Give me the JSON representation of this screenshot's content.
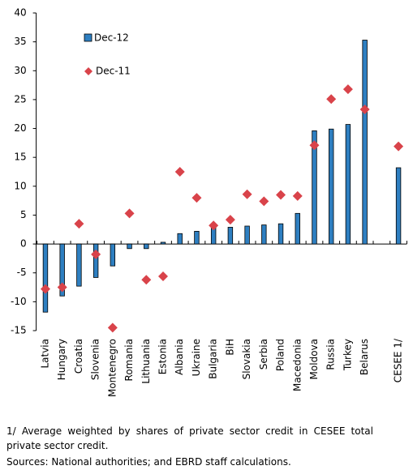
{
  "chart_data": {
    "type": "bar",
    "categories": [
      "Latvia",
      "Hungary",
      "Croatia",
      "Slovenia",
      "Montenegro",
      "Romania",
      "Lithuania",
      "Estonia",
      "Albania",
      "Ukraine",
      "Bulgaria",
      "BiH",
      "Slovakia",
      "Serbia",
      "Poland",
      "Macedonia",
      "Moldova",
      "Russia",
      "Turkey",
      "Belarus",
      null,
      "CESEE 1/"
    ],
    "series": [
      {
        "name": "Dec-12",
        "color": "#2e7fc1",
        "marker": "bar",
        "values": [
          -11.8,
          -9.0,
          -7.3,
          -5.8,
          -3.8,
          -0.8,
          -0.8,
          0.3,
          1.8,
          2.2,
          2.8,
          2.9,
          3.1,
          3.3,
          3.5,
          5.3,
          19.6,
          19.9,
          20.7,
          35.3,
          null,
          13.2
        ]
      },
      {
        "name": "Dec-11",
        "color": "#d9434a",
        "marker": "diamond",
        "values": [
          -7.8,
          -7.5,
          3.5,
          -1.8,
          -14.5,
          5.3,
          -6.2,
          -5.6,
          12.5,
          8.0,
          3.2,
          4.2,
          8.6,
          7.4,
          8.5,
          8.3,
          17.1,
          25.1,
          26.8,
          23.3,
          null,
          16.9
        ]
      }
    ],
    "ylim": [
      -15,
      40
    ],
    "yticks": [
      -15,
      -10,
      -5,
      0,
      5,
      10,
      15,
      20,
      25,
      30,
      35,
      40
    ],
    "grid": false,
    "footnotes": [
      "1/ Average weighted by shares of private sector credit in CESEE total private sector credit.",
      "Sources: National authorities; and EBRD staff calculations."
    ]
  }
}
